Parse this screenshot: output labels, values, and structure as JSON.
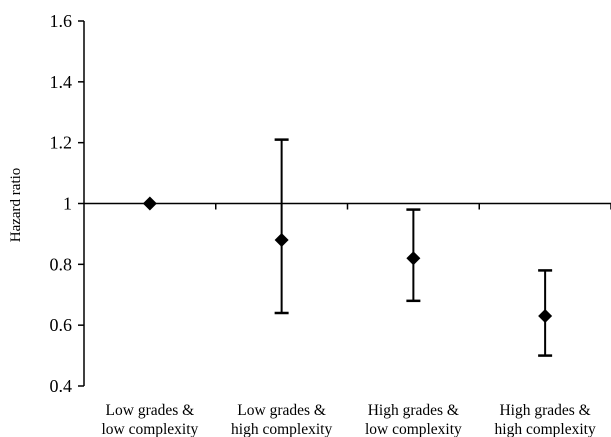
{
  "chart_data": {
    "type": "scatter",
    "title": "",
    "xlabel": "",
    "ylabel": "Hazard ratio",
    "ylim": [
      0.4,
      1.6
    ],
    "yticks": [
      "0.4",
      "0.6",
      "0.8",
      "1",
      "1.2",
      "1.4",
      "1.6"
    ],
    "reference_line": 1,
    "grid": false,
    "legend": "none",
    "marker": "diamond",
    "colors": {
      "marker": "#000000",
      "axis": "#000000"
    },
    "categories": [
      [
        "Low grades &",
        "low complexity"
      ],
      [
        "Low grades &",
        "high complexity"
      ],
      [
        "High grades &",
        "low complexity"
      ],
      [
        "High grades &",
        "high complexity"
      ]
    ],
    "points": [
      {
        "value": 1.0,
        "lower": null,
        "upper": null
      },
      {
        "value": 0.88,
        "lower": 0.64,
        "upper": 1.21
      },
      {
        "value": 0.82,
        "lower": 0.68,
        "upper": 0.98
      },
      {
        "value": 0.63,
        "lower": 0.5,
        "upper": 0.78
      }
    ]
  }
}
